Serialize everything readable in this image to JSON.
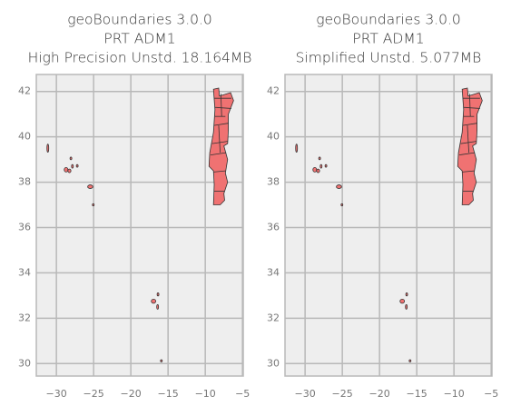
{
  "chart_data": [
    {
      "type": "map",
      "title": [
        "geoBoundaries 3.0.0",
        "PRT ADM1",
        "High Precision Unstd. 18.164MB"
      ],
      "xlim": [
        -32.7,
        -4.9
      ],
      "ylim": [
        29.45,
        42.75
      ],
      "xticks": [
        {
          "value": -30,
          "label": "−30"
        },
        {
          "value": -25,
          "label": "−25"
        },
        {
          "value": -20,
          "label": "−20"
        },
        {
          "value": -15,
          "label": "−15"
        },
        {
          "value": -10,
          "label": "−10"
        },
        {
          "value": -5,
          "label": "−5"
        }
      ],
      "yticks": [
        30,
        32,
        34,
        36,
        38,
        40,
        42
      ],
      "grid": true,
      "color": "#f07272"
    },
    {
      "type": "map",
      "title": [
        "geoBoundaries 3.0.0",
        "PRT ADM1",
        "Simplified Unstd. 5.077MB"
      ],
      "xlim": [
        -32.7,
        -4.9
      ],
      "ylim": [
        29.45,
        42.75
      ],
      "xticks": [
        {
          "value": -30,
          "label": "−30"
        },
        {
          "value": -25,
          "label": "−25"
        },
        {
          "value": -20,
          "label": "−20"
        },
        {
          "value": -15,
          "label": "−15"
        },
        {
          "value": -10,
          "label": "−10"
        },
        {
          "value": -5,
          "label": "−5"
        }
      ],
      "yticks": [
        30,
        32,
        34,
        36,
        38,
        40,
        42
      ],
      "grid": true,
      "color": "#f07272"
    }
  ]
}
